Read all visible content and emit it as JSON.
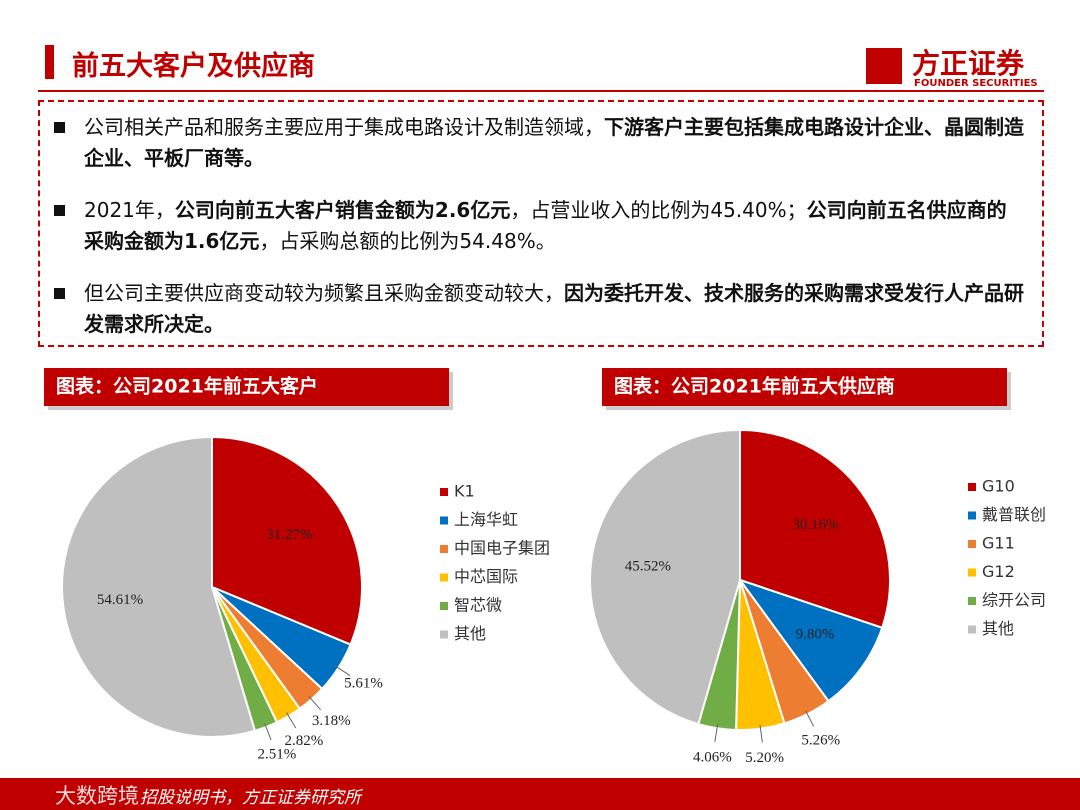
{
  "header": {
    "title": "前五大客户及供应商",
    "logo_cn": "方正证券",
    "logo_en": "FOUNDER SECURITIES"
  },
  "bullets": [
    [
      {
        "text": "公司相关产品和服务主要应用于集成电路设计及制造领域，",
        "bold": false
      },
      {
        "text": "下游客户主要包括集成电路设计企业、晶圆制造企业、平板厂商等。",
        "bold": true
      }
    ],
    [
      {
        "text": "2021年，",
        "bold": false
      },
      {
        "text": "公司向前五大客户销售金额为2.6亿元",
        "bold": true
      },
      {
        "text": "，占营业收入的比例为45.40%；",
        "bold": false
      },
      {
        "text": "公司向前五名供应商的采购金额为1.6亿元",
        "bold": true
      },
      {
        "text": "，占采购总额的比例为54.48%。",
        "bold": false
      }
    ],
    [
      {
        "text": "但公司主要供应商变动较为频繁且采购金额变动较大，",
        "bold": false
      },
      {
        "text": "因为委托开发、技术服务的采购需求受发行人产品研发需求所决定。",
        "bold": true
      }
    ]
  ],
  "chart_data": [
    {
      "type": "pie",
      "title": "图表：公司2021年前五大客户",
      "categories": [
        "K1",
        "上海华虹",
        "中国电子集团",
        "中芯国际",
        "智芯微",
        "其他"
      ],
      "values": [
        31.27,
        5.61,
        3.18,
        2.82,
        2.51,
        54.61
      ],
      "value_labels": [
        "31.27%",
        "5.61%",
        "3.18%",
        "2.82%",
        "2.51%",
        "54.61%"
      ],
      "colors": [
        "#c00000",
        "#0070c0",
        "#ed7d31",
        "#ffc000",
        "#70ad47",
        "#bfbfbf"
      ]
    },
    {
      "type": "pie",
      "title": "图表：公司2021年前五大供应商",
      "categories": [
        "G10",
        "戴普联创",
        "G11",
        "G12",
        "综开公司",
        "其他"
      ],
      "values": [
        30.16,
        9.8,
        5.26,
        5.2,
        4.06,
        45.52
      ],
      "value_labels": [
        "30.16%",
        "9.80%",
        "5.26%",
        "5.20%",
        "4.06%",
        "45.52%"
      ],
      "colors": [
        "#c00000",
        "#0070c0",
        "#ed7d31",
        "#ffc000",
        "#70ad47",
        "#bfbfbf"
      ]
    }
  ],
  "footer": {
    "source": "招股说明书，方正证券研究所",
    "watermark": "大数跨境"
  }
}
